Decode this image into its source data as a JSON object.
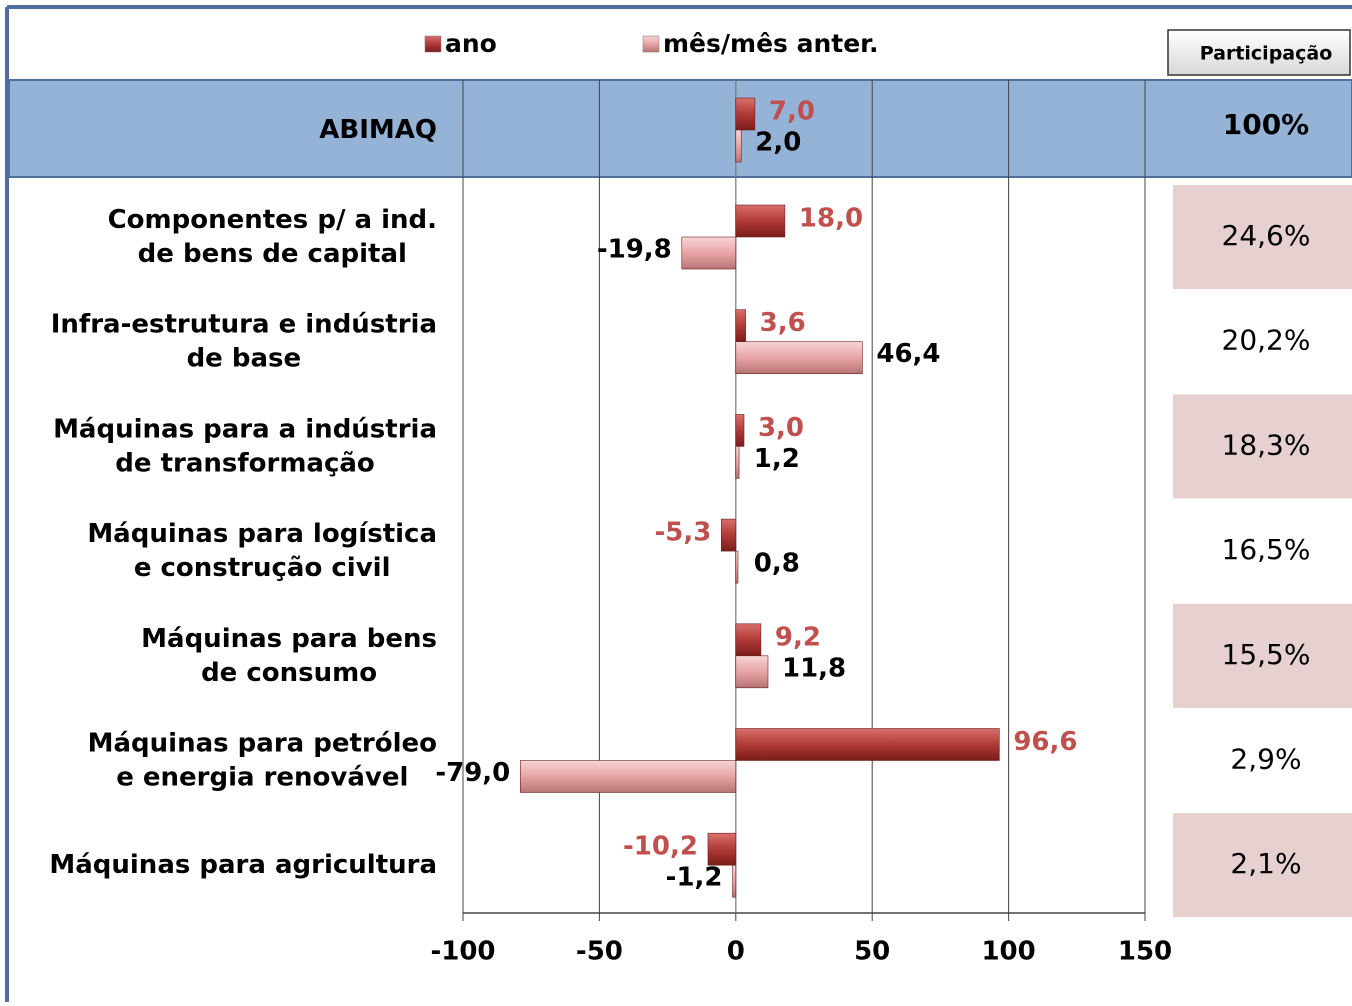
{
  "chart_data": {
    "type": "hbar",
    "categories": [
      "ABIMAQ",
      "Componentes p/ a ind.\nde bens de capital",
      "Infra-estrutura e indústria\nde base",
      "Máquinas para a indústria\nde transformação",
      "Máquinas para logística\ne construção civil",
      "Máquinas para bens\nde consumo",
      "Máquinas para petróleo\ne energia renovável",
      "Máquinas para agricultura"
    ],
    "series": [
      {
        "name": "ano",
        "color": "#b03a36",
        "values": [
          7.0,
          18.0,
          3.6,
          3.0,
          -5.3,
          9.2,
          96.6,
          -10.2
        ],
        "value_labels": [
          "7,0",
          "18,0",
          "3,6",
          "3,0",
          "-5,3",
          "9,2",
          "96,6",
          "-10,2"
        ]
      },
      {
        "name": "mês/mês anter.",
        "color": "#e8a4a4",
        "values": [
          2.0,
          -19.8,
          46.4,
          1.2,
          0.8,
          11.8,
          -79.0,
          -1.2
        ],
        "value_labels": [
          "2,0",
          "-19,8",
          "46,4",
          "1,2",
          "0,8",
          "11,8",
          "-79,0",
          "-1,2"
        ]
      }
    ],
    "xlim": [
      -100,
      150
    ],
    "xticks": [
      -100,
      -50,
      0,
      50,
      100,
      150
    ],
    "grid": true,
    "participacao": {
      "header": "Participação",
      "labels": [
        "100%",
        "24,6%",
        "20,2%",
        "18,3%",
        "16,5%",
        "15,5%",
        "2,9%",
        "2,1%"
      ]
    }
  }
}
